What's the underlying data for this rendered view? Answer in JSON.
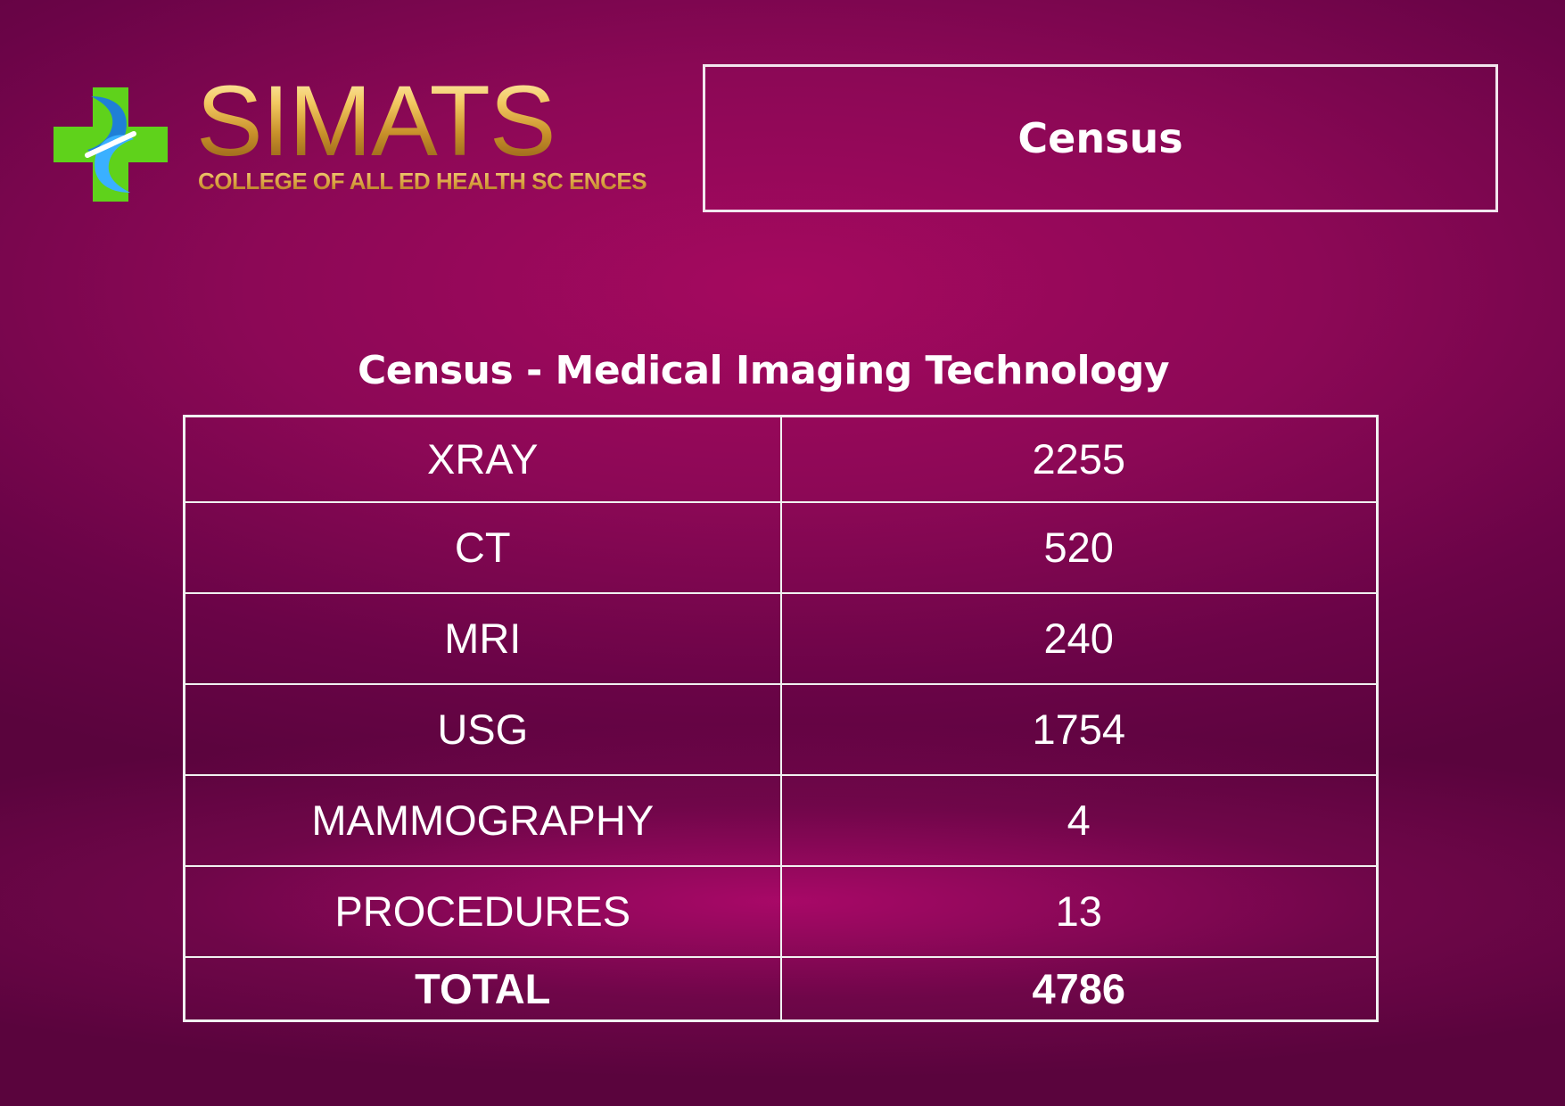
{
  "logo": {
    "name": "SIMATS",
    "subtitle": "COLLEGE OF ALL ED HEALTH SC ENCES"
  },
  "title_box": {
    "title": "Census"
  },
  "table": {
    "heading": "Census - Medical Imaging Technology",
    "rows": [
      {
        "label": "XRAY",
        "value": "2255"
      },
      {
        "label": "CT",
        "value": "520"
      },
      {
        "label": "MRI",
        "value": "240"
      },
      {
        "label": "USG",
        "value": "1754"
      },
      {
        "label": "MAMMOGRAPHY",
        "value": "4"
      },
      {
        "label": "PROCEDURES",
        "value": "13"
      }
    ],
    "total": {
      "label": "TOTAL",
      "value": "4786"
    }
  },
  "colors": {
    "background": "#8c0856",
    "logo_gold": "#d59c3a",
    "logo_green": "#5fd21b",
    "logo_blue": "#1f7fd6",
    "text": "#ffffff"
  }
}
